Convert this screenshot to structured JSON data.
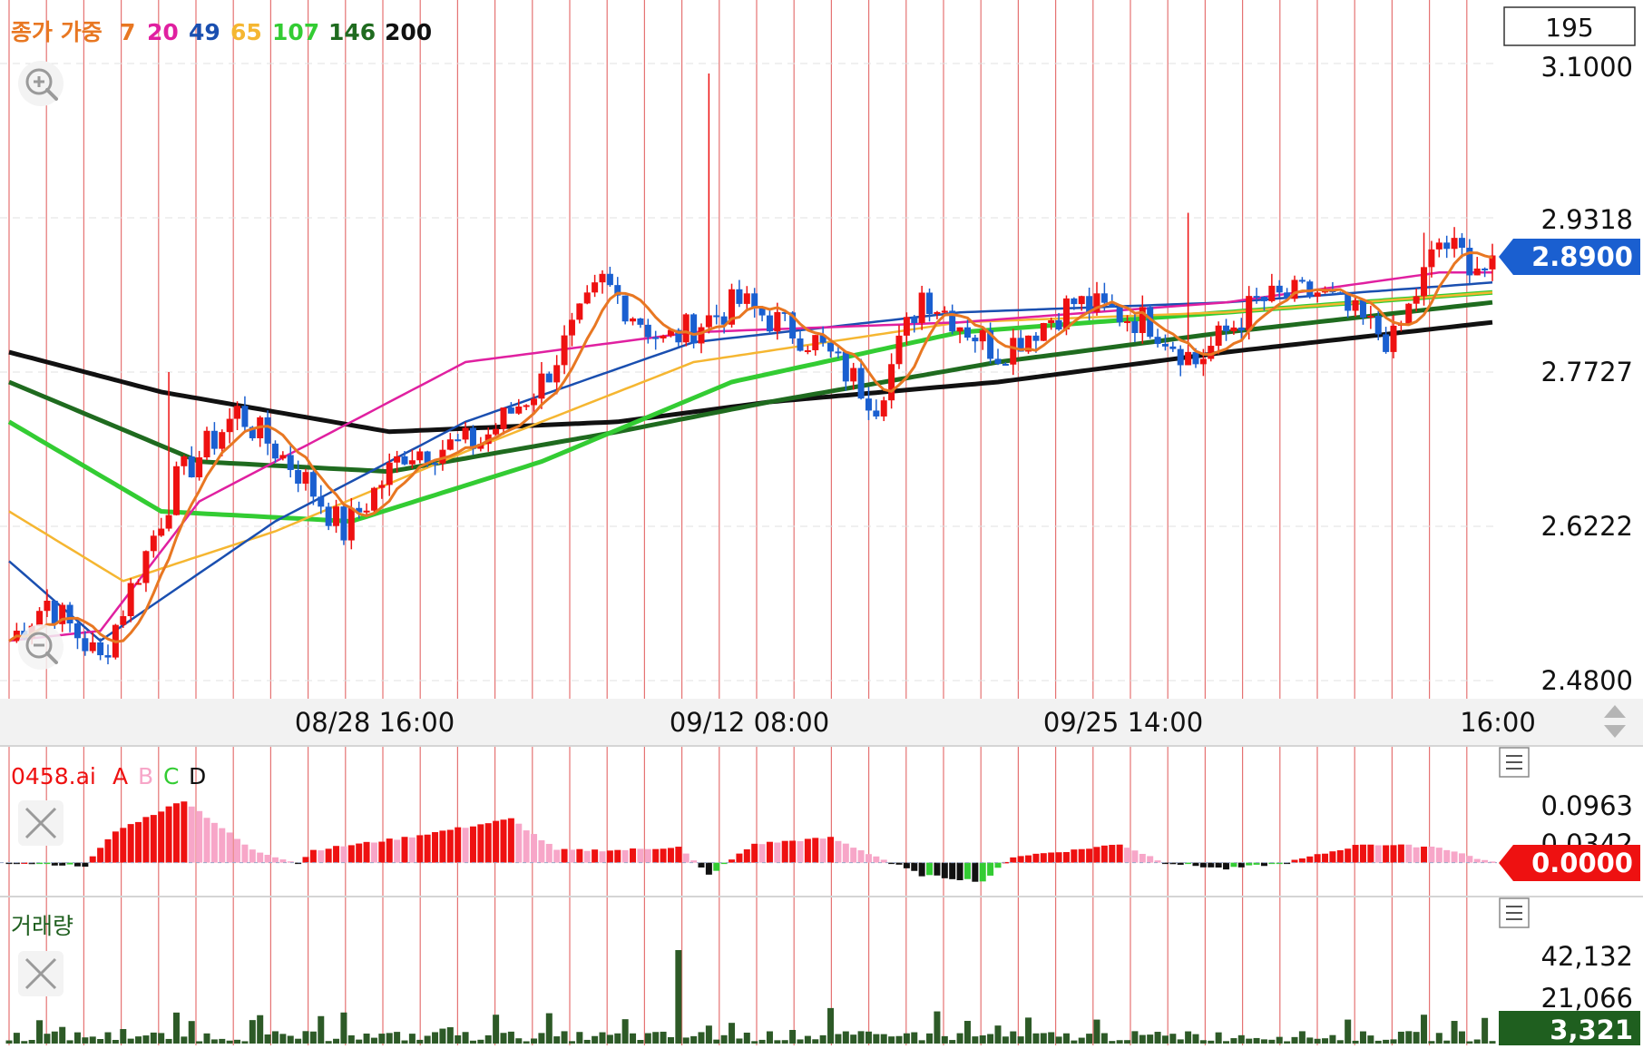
{
  "legend": {
    "title": "종가 가중",
    "periods": [
      "7",
      "20",
      "49",
      "65",
      "107",
      "146",
      "200"
    ],
    "colors": [
      "#e87722",
      "#e020a0",
      "#1a4fb0",
      "#f5b631",
      "#33cc33",
      "#1f6b1f",
      "#111111"
    ]
  },
  "price_axis": {
    "top_box": "195",
    "ticks": [
      "3.1000",
      "2.9318",
      "2.7727",
      "2.6222",
      "2.4800"
    ],
    "current_price": "2.8900",
    "current_color": "#1a5fd0"
  },
  "time_axis": {
    "labels": [
      "08/28 16:00",
      "09/12 08:00",
      "09/25 14:00",
      "16:00"
    ]
  },
  "indicator_panel": {
    "name": "0458.ai",
    "series": [
      "A",
      "B",
      "C",
      "D"
    ],
    "series_colors": [
      "#ee1111",
      "#f7a6c8",
      "#33cc33",
      "#111111"
    ],
    "ticks": [
      "0.0963",
      "0.0342"
    ],
    "current_value": "0.0000",
    "current_color": "#ee1111"
  },
  "volume_panel": {
    "name": "거래량",
    "ticks": [
      "42,132",
      "21,066"
    ],
    "current_value": "3,321",
    "current_color": "#1f5f1f"
  },
  "icons": {
    "zoom_in": "zoom-in-icon",
    "zoom_out": "zoom-out-icon",
    "close": "close-icon",
    "menu": "hamburger-menu-icon",
    "scroll": "up-down-arrows-icon"
  },
  "chart_data": {
    "type": "candlestick",
    "y_range": [
      2.48,
      3.1
    ],
    "candle_colors": {
      "up": "#ee1111",
      "down": "#1a5fd0"
    },
    "ohlc_anchors": [
      {
        "i": 0,
        "close": 2.52
      },
      {
        "i": 5,
        "close": 2.56
      },
      {
        "i": 12,
        "close": 2.5
      },
      {
        "i": 22,
        "close": 2.68
      },
      {
        "i": 30,
        "close": 2.75
      },
      {
        "i": 38,
        "close": 2.69
      },
      {
        "i": 44,
        "close": 2.63
      },
      {
        "i": 52,
        "close": 2.71
      },
      {
        "i": 62,
        "close": 2.72
      },
      {
        "i": 70,
        "close": 2.78
      },
      {
        "i": 78,
        "close": 2.88
      },
      {
        "i": 86,
        "close": 2.82
      },
      {
        "i": 96,
        "close": 2.86
      },
      {
        "i": 106,
        "close": 2.82
      },
      {
        "i": 114,
        "close": 2.76
      },
      {
        "i": 120,
        "close": 2.87
      },
      {
        "i": 130,
        "close": 2.81
      },
      {
        "i": 140,
        "close": 2.86
      },
      {
        "i": 150,
        "close": 2.84
      },
      {
        "i": 156,
        "close": 2.8
      },
      {
        "i": 164,
        "close": 2.86
      },
      {
        "i": 172,
        "close": 2.87
      },
      {
        "i": 182,
        "close": 2.82
      },
      {
        "i": 188,
        "close": 2.92
      },
      {
        "i": 195,
        "close": 2.89
      }
    ],
    "spikes": [
      {
        "i": 92,
        "high": 3.09
      },
      {
        "i": 155,
        "high": 2.95
      },
      {
        "i": 186,
        "high": 2.93
      },
      {
        "i": 21,
        "high": 2.79
      }
    ],
    "ma_curves": [
      {
        "period": "200",
        "color": "#111111",
        "points": [
          [
            0,
            2.81
          ],
          [
            20,
            2.77
          ],
          [
            50,
            2.73
          ],
          [
            80,
            2.74
          ],
          [
            100,
            2.76
          ],
          [
            130,
            2.78
          ],
          [
            160,
            2.81
          ],
          [
            195,
            2.84
          ]
        ]
      },
      {
        "period": "146",
        "color": "#1f6b1f",
        "points": [
          [
            0,
            2.78
          ],
          [
            25,
            2.7
          ],
          [
            50,
            2.69
          ],
          [
            80,
            2.73
          ],
          [
            100,
            2.76
          ],
          [
            130,
            2.8
          ],
          [
            160,
            2.83
          ],
          [
            195,
            2.86
          ]
        ]
      },
      {
        "period": "107",
        "color": "#33cc33",
        "points": [
          [
            0,
            2.74
          ],
          [
            20,
            2.65
          ],
          [
            45,
            2.64
          ],
          [
            70,
            2.7
          ],
          [
            95,
            2.78
          ],
          [
            125,
            2.83
          ],
          [
            160,
            2.85
          ],
          [
            195,
            2.87
          ]
        ]
      },
      {
        "period": "65",
        "color": "#f5b631",
        "points": [
          [
            0,
            2.65
          ],
          [
            15,
            2.58
          ],
          [
            35,
            2.63
          ],
          [
            60,
            2.71
          ],
          [
            90,
            2.8
          ],
          [
            125,
            2.84
          ],
          [
            160,
            2.85
          ],
          [
            195,
            2.87
          ]
        ]
      },
      {
        "period": "49",
        "color": "#1a4fb0",
        "points": [
          [
            0,
            2.6
          ],
          [
            12,
            2.52
          ],
          [
            35,
            2.64
          ],
          [
            60,
            2.74
          ],
          [
            90,
            2.82
          ],
          [
            125,
            2.85
          ],
          [
            160,
            2.86
          ],
          [
            195,
            2.88
          ]
        ]
      },
      {
        "period": "20",
        "color": "#e020a0",
        "points": [
          [
            0,
            2.52
          ],
          [
            12,
            2.53
          ],
          [
            25,
            2.66
          ],
          [
            60,
            2.8
          ],
          [
            90,
            2.83
          ],
          [
            125,
            2.84
          ],
          [
            160,
            2.86
          ],
          [
            188,
            2.89
          ],
          [
            195,
            2.89
          ]
        ]
      }
    ],
    "osc_profile": [
      [
        0,
        0
      ],
      [
        10,
        -0.005
      ],
      [
        14,
        0.05
      ],
      [
        23,
        0.1
      ],
      [
        32,
        0.02
      ],
      [
        38,
        0
      ],
      [
        40,
        0.02
      ],
      [
        52,
        0.04
      ],
      [
        66,
        0.07
      ],
      [
        72,
        0.02
      ],
      [
        80,
        0.02
      ],
      [
        88,
        0.025
      ],
      [
        92,
        -0.02
      ],
      [
        98,
        0.03
      ],
      [
        108,
        0.04
      ],
      [
        114,
        0.01
      ],
      [
        120,
        -0.02
      ],
      [
        128,
        -0.03
      ],
      [
        132,
        0.01
      ],
      [
        140,
        0.02
      ],
      [
        146,
        0.03
      ],
      [
        152,
        0
      ],
      [
        160,
        -0.01
      ],
      [
        168,
        0
      ],
      [
        178,
        0.03
      ],
      [
        188,
        0.025
      ],
      [
        195,
        0.0
      ]
    ],
    "osc_range": [
      -0.05,
      0.11
    ],
    "volume_range": [
      0,
      45000
    ],
    "volume_spikes": [
      {
        "i": 88,
        "v": 42132
      },
      {
        "i": 44,
        "v": 14000
      },
      {
        "i": 64,
        "v": 13000
      },
      {
        "i": 108,
        "v": 16000
      },
      {
        "i": 122,
        "v": 14500
      },
      {
        "i": 186,
        "v": 13000
      }
    ],
    "volume_base": 3321
  }
}
